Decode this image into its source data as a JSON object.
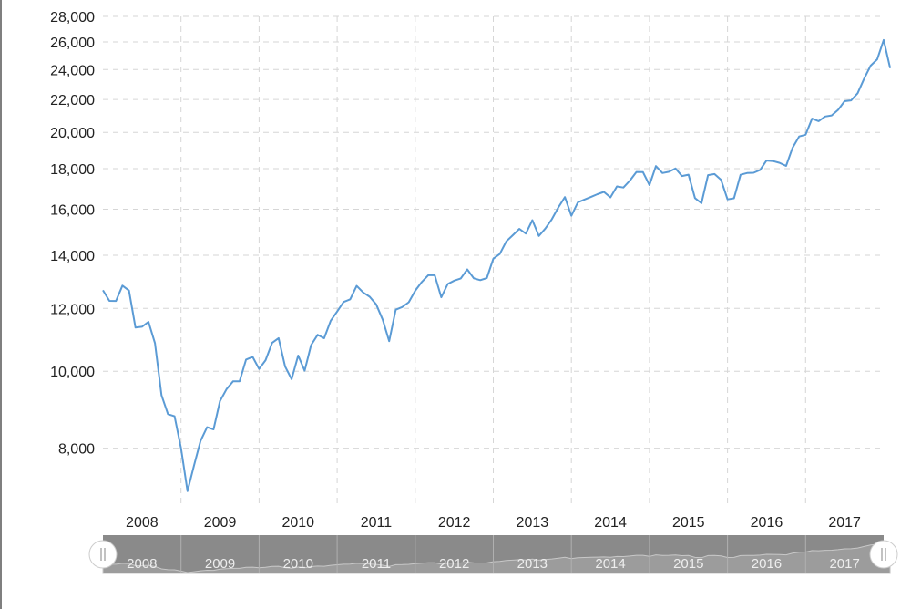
{
  "chart_data": {
    "type": "line",
    "title": "",
    "xlabel": "",
    "ylabel": "",
    "y_scale": "log",
    "ylim": [
      6800,
      28000
    ],
    "xlim": [
      "2008-01",
      "2018-01"
    ],
    "y_ticks": [
      8000,
      10000,
      12000,
      14000,
      16000,
      18000,
      20000,
      22000,
      24000,
      26000,
      28000
    ],
    "y_tick_labels": [
      "8,000",
      "10,000",
      "12,000",
      "14,000",
      "16,000",
      "18,000",
      "20,000",
      "22,000",
      "24,000",
      "26,000",
      "28,000"
    ],
    "x_tick_labels": [
      "2008",
      "2009",
      "2010",
      "2011",
      "2012",
      "2013",
      "2014",
      "2015",
      "2016",
      "2017"
    ],
    "grid": true,
    "line_color": "#5b9bd5",
    "series": [
      {
        "x": [
          "2008-01",
          "2008-02",
          "2008-03",
          "2008-04",
          "2008-05",
          "2008-06",
          "2008-07",
          "2008-08",
          "2008-09",
          "2008-10",
          "2008-11",
          "2008-12",
          "2009-01",
          "2009-02",
          "2009-03",
          "2009-04",
          "2009-05",
          "2009-06",
          "2009-07",
          "2009-08",
          "2009-09",
          "2009-10",
          "2009-11",
          "2009-12",
          "2010-01",
          "2010-02",
          "2010-03",
          "2010-04",
          "2010-05",
          "2010-06",
          "2010-07",
          "2010-08",
          "2010-09",
          "2010-10",
          "2010-11",
          "2010-12",
          "2011-01",
          "2011-02",
          "2011-03",
          "2011-04",
          "2011-05",
          "2011-06",
          "2011-07",
          "2011-08",
          "2011-09",
          "2011-10",
          "2011-11",
          "2011-12",
          "2012-01",
          "2012-02",
          "2012-03",
          "2012-04",
          "2012-05",
          "2012-06",
          "2012-07",
          "2012-08",
          "2012-09",
          "2012-10",
          "2012-11",
          "2012-12",
          "2013-01",
          "2013-02",
          "2013-03",
          "2013-04",
          "2013-05",
          "2013-06",
          "2013-07",
          "2013-08",
          "2013-09",
          "2013-10",
          "2013-11",
          "2013-12",
          "2014-01",
          "2014-02",
          "2014-03",
          "2014-04",
          "2014-05",
          "2014-06",
          "2014-07",
          "2014-08",
          "2014-09",
          "2014-10",
          "2014-11",
          "2014-12",
          "2015-01",
          "2015-02",
          "2015-03",
          "2015-04",
          "2015-05",
          "2015-06",
          "2015-07",
          "2015-08",
          "2015-09",
          "2015-10",
          "2015-11",
          "2015-12",
          "2016-01",
          "2016-02",
          "2016-03",
          "2016-04",
          "2016-05",
          "2016-06",
          "2016-07",
          "2016-08",
          "2016-09",
          "2016-10",
          "2016-11",
          "2016-12",
          "2017-01",
          "2017-02",
          "2017-03",
          "2017-04",
          "2017-05",
          "2017-06",
          "2017-07",
          "2017-08",
          "2017-09",
          "2017-10",
          "2017-11",
          "2017-12",
          "2018-01",
          "2018-02"
        ],
        "values": [
          12650,
          12266,
          12262,
          12820,
          12638,
          11350,
          11378,
          11543,
          10850,
          9325,
          8829,
          8776,
          8000,
          7062,
          7609,
          8168,
          8500,
          8447,
          9171,
          9496,
          9712,
          9713,
          10344,
          10428,
          10067,
          10325,
          10857,
          11009,
          10137,
          9774,
          10466,
          10015,
          10788,
          11118,
          11006,
          11578,
          11892,
          12226,
          12320,
          12811,
          12570,
          12414,
          12143,
          11614,
          10913,
          11955,
          12046,
          12218,
          12632,
          12952,
          13212,
          13214,
          12393,
          12880,
          13009,
          13090,
          13437,
          13096,
          13026,
          13104,
          13861,
          14054,
          14579,
          14840,
          15116,
          14910,
          15500,
          14810,
          15130,
          15546,
          16086,
          16577,
          15699,
          16322,
          16458,
          16581,
          16717,
          16827,
          16563,
          17098,
          17043,
          17391,
          17828,
          17823,
          17165,
          18133,
          17776,
          17841,
          18011,
          17620,
          17690,
          16528,
          16285,
          17664,
          17720,
          17425,
          16466,
          16516,
          17685,
          17774,
          17787,
          17930,
          18432,
          18401,
          18308,
          18142,
          19124,
          19763,
          19864,
          20812,
          20663,
          20941,
          21009,
          21350,
          21891,
          21948,
          22405,
          23377,
          24272,
          24719,
          26149,
          24103
        ],
        "scatter_only": false
      }
    ],
    "navigator": {
      "labels": [
        "2008",
        "2009",
        "2010",
        "2011",
        "2012",
        "2013",
        "2014",
        "2015",
        "2016",
        "2017"
      ]
    }
  }
}
